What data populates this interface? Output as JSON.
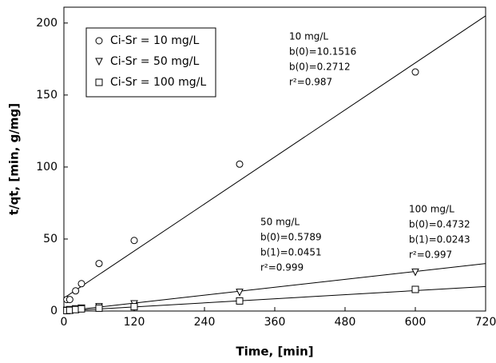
{
  "chart_data": {
    "type": "scatter",
    "x_label": "Time, [min]",
    "y_label": "t/qt, [min, g/mg]",
    "xlim": [
      0,
      720
    ],
    "xticks": [
      0,
      120,
      240,
      360,
      480,
      600,
      720
    ],
    "ylim": [
      0,
      211
    ],
    "yticks": [
      0,
      50,
      100,
      150,
      200
    ],
    "series": [
      {
        "name": "Ci-Sr = 10 mg/L",
        "marker": "circle",
        "color": "#000000",
        "x": [
          5,
          10,
          20,
          30,
          60,
          120,
          300,
          600
        ],
        "values": [
          8,
          8,
          14,
          19,
          33,
          49,
          102,
          166
        ]
      },
      {
        "name": "Ci-Sr = 50 mg/L",
        "marker": "triangle",
        "color": "#000000",
        "x": [
          5,
          10,
          20,
          30,
          60,
          120,
          300,
          600
        ],
        "values": [
          0.5,
          1,
          1.5,
          2,
          3,
          5,
          13,
          27
        ]
      },
      {
        "name": "Ci-Sr = 100 mg/L",
        "marker": "square",
        "color": "#000000",
        "x": [
          5,
          10,
          20,
          30,
          60,
          120,
          300,
          600
        ],
        "values": [
          0.3,
          0.5,
          1,
          1.5,
          2,
          3,
          7,
          15
        ]
      }
    ],
    "fits": [
      {
        "x": [
          0,
          720
        ],
        "values": [
          9,
          205
        ]
      },
      {
        "x": [
          0,
          720
        ],
        "values": [
          0,
          33
        ]
      },
      {
        "x": [
          0,
          720
        ],
        "values": [
          0,
          17
        ]
      }
    ],
    "annotations": [
      [
        "10 mg/L",
        "b(0)=10.1516",
        "b(0)=0.2712",
        "r²=0.987"
      ],
      [
        "50 mg/L",
        "b(0)=0.5789",
        "b(1)=0.0451",
        "r²=0.999"
      ],
      [
        "100 mg/L",
        "b(0)=0.4732",
        "b(1)=0.0243",
        "r²=0.997"
      ]
    ]
  }
}
